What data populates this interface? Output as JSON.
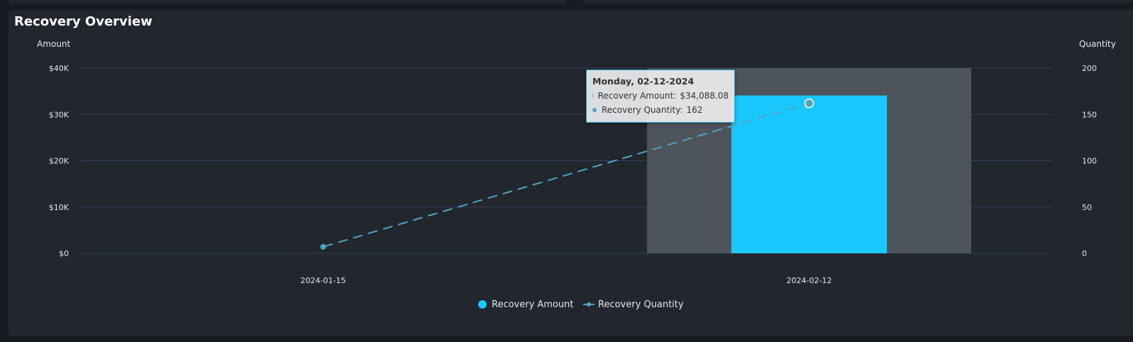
{
  "panel": {
    "title": "Recovery Overview"
  },
  "colors": {
    "amount": "#1ac8ff",
    "quantity": "#4fa3c8",
    "hover_band": "#4e545c",
    "grid": "#3a3f63"
  },
  "chart_data": {
    "type": "bar",
    "categories": [
      "2024-01-15",
      "2024-02-12"
    ],
    "series": [
      {
        "name": "Recovery Amount",
        "type": "bar",
        "axis": "left",
        "values": [
          0,
          34088.08
        ]
      },
      {
        "name": "Recovery Quantity",
        "type": "line",
        "style": "dashed",
        "axis": "right",
        "values": [
          7,
          162
        ]
      }
    ],
    "y_left": {
      "label": "Amount",
      "ylim": [
        0,
        40000
      ],
      "ticks": [
        "$0",
        "$10K",
        "$20K",
        "$30K",
        "$40K"
      ]
    },
    "y_right": {
      "label": "Quantity",
      "ylim": [
        0,
        200
      ],
      "ticks": [
        "0",
        "50",
        "100",
        "150",
        "200"
      ]
    },
    "grid": true,
    "legend": "bottom-center",
    "hovered_category": "2024-02-12"
  },
  "tooltip": {
    "title": "Monday, 02-12-2024",
    "rows": [
      {
        "label": "Recovery Amount:",
        "value": "$34,088.08"
      },
      {
        "label": "Recovery Quantity:",
        "value": "162"
      }
    ]
  }
}
